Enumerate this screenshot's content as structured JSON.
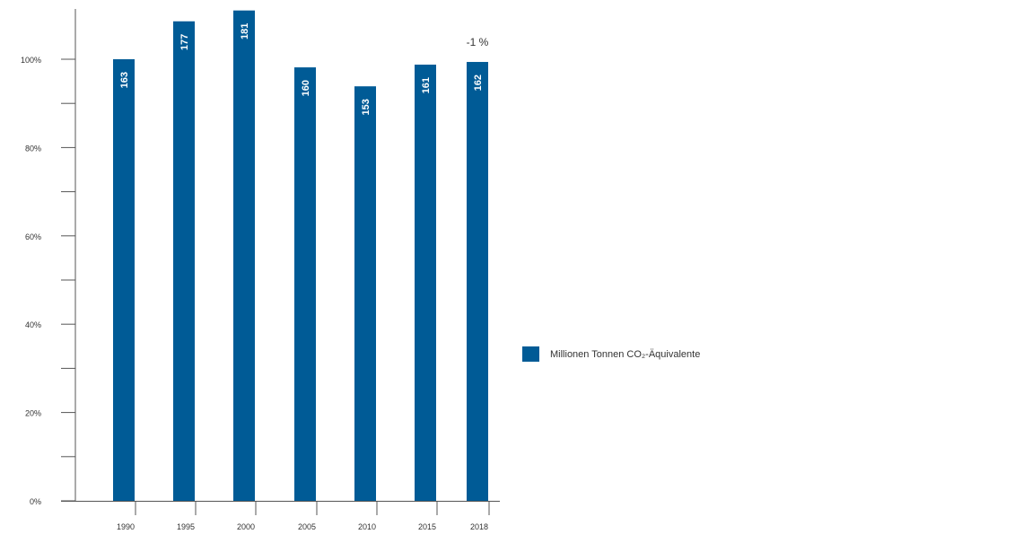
{
  "chart_data": {
    "type": "bar",
    "categories": [
      "1990",
      "1995",
      "2000",
      "2005",
      "2010",
      "2015",
      "2018"
    ],
    "values": [
      163,
      177,
      181,
      160,
      153,
      161,
      162
    ],
    "value_labels": [
      "163",
      "177",
      "181",
      "160",
      "153",
      "161",
      "162"
    ],
    "baseline_value": 163,
    "y_axis": {
      "ticks": [
        "0%",
        "20%",
        "40%",
        "60%",
        "80%",
        "100%"
      ],
      "tick_values": [
        0,
        20,
        40,
        60,
        80,
        100
      ],
      "range_percent": [
        0,
        100
      ]
    },
    "annotation": "-1 %",
    "series": [
      {
        "name": "Millionen Tonnen CO₂-Äquivalente",
        "values": [
          163,
          177,
          181,
          160,
          153,
          161,
          162
        ]
      }
    ],
    "legend_label": "Millionen Tonnen CO₂-Äquivalente",
    "legend_position": "right",
    "bar_color": "#005b96",
    "label_color": "#ffffff",
    "axis_color": "#555555",
    "text_color": "#333333",
    "grid": false
  }
}
